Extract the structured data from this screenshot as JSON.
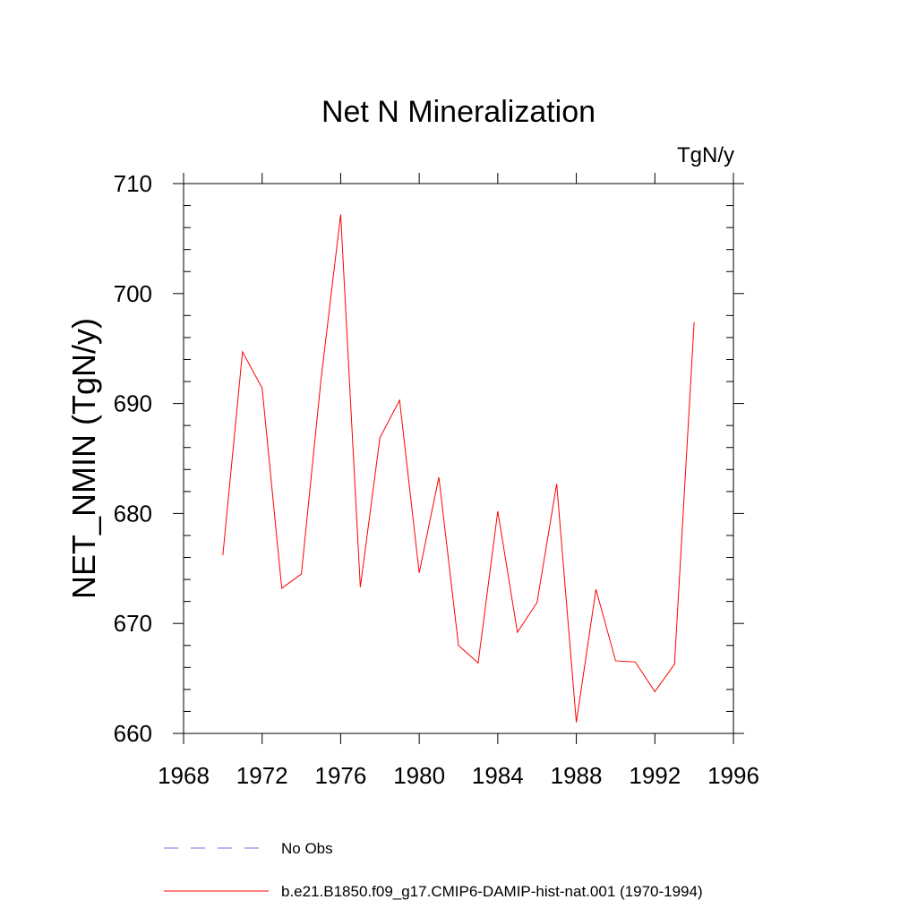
{
  "chart_data": {
    "type": "line",
    "title": "Net N Mineralization",
    "units_label": "TgN/y",
    "xlabel": "",
    "ylabel": "NET_NMIN  (TgN/y)",
    "xlim": [
      1968,
      1996
    ],
    "ylim": [
      660,
      710
    ],
    "x_ticks": [
      "1968",
      "1972",
      "1976",
      "1980",
      "1984",
      "1988",
      "1992",
      "1996"
    ],
    "y_ticks": [
      "660",
      "670",
      "680",
      "690",
      "700",
      "710"
    ],
    "grid": false,
    "legend_position": "bottom",
    "series": [
      {
        "name": "b.e21.B1850.f09_g17.CMIP6-DAMIP-hist-nat.001 (1970-1994)",
        "color": "#ff0000",
        "style": "solid",
        "x": [
          1970,
          1971,
          1972,
          1973,
          1974,
          1975,
          1976,
          1977,
          1978,
          1979,
          1980,
          1981,
          1982,
          1983,
          1984,
          1985,
          1986,
          1987,
          1988,
          1989,
          1990,
          1991,
          1992,
          1993,
          1994
        ],
        "y": [
          676.2,
          694.7,
          691.4,
          673.2,
          674.5,
          692.2,
          707.2,
          673.3,
          686.9,
          690.3,
          674.6,
          683.3,
          668.0,
          666.4,
          680.2,
          669.2,
          671.9,
          682.7,
          661.0,
          673.1,
          666.6,
          666.5,
          663.8,
          666.3,
          697.4
        ]
      }
    ],
    "legend": [
      {
        "label": "No Obs",
        "color": "#7070e0",
        "style": "dashed"
      },
      {
        "label": "b.e21.B1850.f09_g17.CMIP6-DAMIP-hist-nat.001 (1970-1994)",
        "color": "#ff0000",
        "style": "solid"
      }
    ]
  }
}
